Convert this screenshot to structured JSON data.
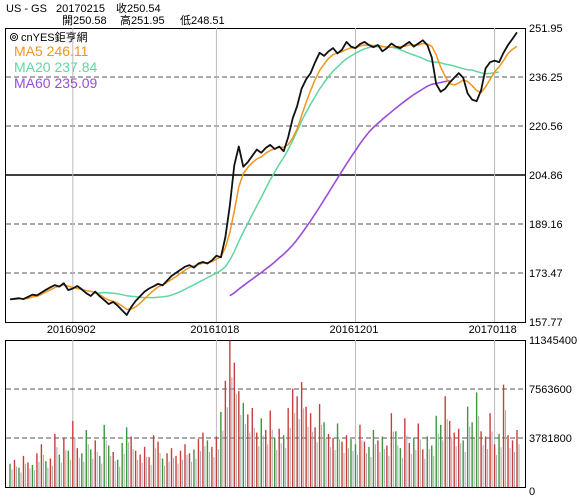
{
  "header": {
    "symbol": "US - GS",
    "date": "20170215",
    "close_label": "收250.54",
    "open_label": "開250.58",
    "high_label": "高251.95",
    "low_label": "低248.51"
  },
  "brand": {
    "icon": "copyright-icon",
    "text": "cnYES鉅亨網"
  },
  "colors": {
    "price": "#111111",
    "ma5": "#f0961e",
    "ma20": "#5fd7a0",
    "ma60": "#9b4bdc",
    "vol_red": "#c83c3c",
    "vol_green": "#3c963c",
    "vol_gray": "#999999"
  },
  "chart_data": [
    {
      "type": "line",
      "title": "US - GS",
      "xlabel": "",
      "ylabel": "",
      "ylim": [
        157.77,
        251.95
      ],
      "yticks": [
        "251.95",
        "236.25",
        "220.56",
        "204.86",
        "189.16",
        "173.47",
        "157.77"
      ],
      "xticks": [
        {
          "label": "20160902",
          "index": 14
        },
        {
          "label": "20161018",
          "index": 46
        },
        {
          "label": "20161201",
          "index": 77
        },
        {
          "label": "20170118",
          "index": 108
        }
      ],
      "legend": [
        {
          "key": "ma5",
          "text": "MA5 246.11"
        },
        {
          "key": "ma20",
          "text": "MA20 237.84"
        },
        {
          "key": "ma60",
          "text": "MA60 235.09"
        }
      ],
      "series": [
        {
          "name": "Close",
          "values": [
            165.0,
            165.2,
            165.4,
            165.1,
            165.8,
            166.5,
            166.3,
            167.2,
            168.1,
            168.9,
            169.6,
            169.1,
            170.2,
            168.0,
            168.5,
            169.3,
            168.2,
            167.0,
            166.1,
            167.5,
            166.0,
            164.8,
            163.5,
            164.2,
            163.0,
            161.5,
            160.0,
            162.5,
            164.5,
            166.0,
            167.5,
            168.5,
            169.2,
            170.0,
            169.5,
            171.0,
            172.5,
            173.5,
            174.5,
            175.5,
            176.0,
            175.2,
            176.5,
            177.0,
            176.5,
            177.5,
            179.0,
            178.5,
            185.0,
            195.0,
            208.0,
            214.0,
            207.5,
            209.0,
            211.0,
            213.0,
            212.0,
            213.5,
            214.5,
            213.2,
            214.0,
            212.5,
            217.0,
            223.0,
            227.0,
            232.5,
            235.5,
            237.5,
            241.0,
            244.0,
            243.0,
            244.5,
            245.5,
            243.8,
            245.0,
            247.5,
            246.0,
            245.5,
            246.8,
            247.5,
            246.5,
            245.8,
            246.5,
            244.5,
            245.5,
            247.0,
            246.0,
            245.5,
            246.5,
            247.5,
            246.0,
            247.0,
            248.0,
            246.5,
            242.5,
            234.0,
            231.5,
            232.5,
            234.5,
            236.0,
            237.5,
            236.0,
            231.0,
            229.0,
            228.5,
            232.0,
            239.0,
            241.0,
            241.5,
            241.0,
            244.0,
            246.5,
            248.5,
            250.54
          ]
        },
        {
          "name": "MA5",
          "values": [
            165.0,
            165.1,
            165.2,
            165.2,
            165.3,
            165.8,
            166.0,
            166.6,
            167.4,
            168.1,
            168.8,
            169.3,
            169.7,
            169.2,
            168.9,
            168.5,
            168.2,
            167.8,
            167.6,
            167.2,
            166.5,
            165.6,
            164.8,
            164.4,
            163.8,
            162.9,
            161.8,
            161.9,
            162.6,
            163.8,
            165.2,
            166.6,
            167.9,
            169.0,
            169.7,
            170.5,
            171.4,
            172.3,
            173.4,
            174.4,
            175.2,
            175.7,
            176.2,
            176.6,
            176.8,
            177.1,
            177.9,
            178.6,
            181.6,
            186.4,
            193.3,
            201.1,
            205.3,
            207.3,
            208.8,
            210.0,
            210.7,
            211.8,
            212.7,
            213.3,
            213.7,
            213.8,
            214.6,
            216.7,
            219.6,
            223.9,
            228.1,
            231.9,
            235.4,
            238.3,
            240.4,
            242.2,
            243.4,
            244.0,
            244.4,
            245.1,
            245.6,
            245.5,
            246.2,
            246.5,
            246.4,
            246.3,
            246.5,
            246.0,
            245.8,
            245.8,
            246.0,
            246.0,
            246.1,
            246.5,
            246.5,
            246.5,
            247.0,
            246.8,
            246.1,
            243.4,
            239.4,
            236.4,
            234.1,
            233.7,
            234.3,
            235.3,
            234.8,
            233.5,
            231.9,
            231.3,
            233.1,
            235.5,
            237.9,
            239.5,
            241.5,
            243.8,
            245.1,
            246.11
          ]
        },
        {
          "name": "MA20",
          "values": [
            null,
            null,
            null,
            null,
            null,
            null,
            null,
            null,
            null,
            null,
            null,
            null,
            null,
            null,
            null,
            null,
            null,
            null,
            null,
            167.0,
            167.1,
            167.2,
            167.1,
            167.0,
            166.8,
            166.5,
            166.2,
            166.0,
            165.9,
            165.7,
            165.6,
            165.6,
            165.6,
            165.7,
            165.8,
            166.0,
            166.4,
            166.9,
            167.5,
            168.2,
            169.0,
            169.7,
            170.5,
            171.2,
            172.0,
            172.7,
            173.4,
            174.3,
            175.5,
            177.6,
            180.3,
            183.6,
            186.6,
            189.4,
            192.2,
            195.0,
            197.7,
            200.5,
            203.3,
            205.8,
            208.3,
            210.5,
            213.0,
            215.9,
            219.0,
            222.2,
            224.9,
            227.5,
            230.0,
            232.4,
            234.5,
            236.4,
            238.1,
            239.5,
            240.9,
            242.1,
            243.0,
            243.8,
            244.6,
            245.3,
            245.7,
            245.9,
            246.0,
            246.0,
            245.9,
            245.8,
            245.5,
            245.0,
            244.4,
            243.8,
            243.3,
            242.8,
            242.2,
            241.5,
            241.1,
            241.0,
            240.8,
            240.4,
            240.1,
            239.8,
            239.3,
            238.9,
            238.6,
            238.5,
            238.0,
            237.6,
            237.3,
            237.4,
            237.6,
            237.84
          ]
        },
        {
          "name": "MA60",
          "values": [
            null,
            null,
            null,
            null,
            null,
            null,
            null,
            null,
            null,
            null,
            null,
            null,
            null,
            null,
            null,
            null,
            null,
            null,
            null,
            null,
            null,
            null,
            null,
            null,
            null,
            null,
            null,
            null,
            null,
            null,
            null,
            null,
            null,
            null,
            null,
            null,
            null,
            null,
            null,
            null,
            null,
            null,
            null,
            null,
            null,
            null,
            null,
            null,
            null,
            166.2,
            167.1,
            168.3,
            169.4,
            170.5,
            171.5,
            172.6,
            173.6,
            174.7,
            175.8,
            177.0,
            178.3,
            179.5,
            180.9,
            182.4,
            184.2,
            186.1,
            188.1,
            190.2,
            192.4,
            194.6,
            196.9,
            199.2,
            201.5,
            203.8,
            206.1,
            208.4,
            210.6,
            212.7,
            214.9,
            216.8,
            218.6,
            220.1,
            221.4,
            222.7,
            223.9,
            225.1,
            226.3,
            227.4,
            228.5,
            229.6,
            230.6,
            231.5,
            232.4,
            233.3,
            233.9,
            234.2,
            234.5,
            234.8,
            235.09
          ]
        }
      ]
    },
    {
      "type": "bar",
      "title": "",
      "xlabel": "",
      "ylabel": "",
      "ylim": [
        0,
        11345400
      ],
      "yticks": [
        "11345400",
        "7563600",
        "3781800",
        "0"
      ],
      "series": [
        {
          "name": "",
          "values": [
            1.8,
            2.1,
            1.5,
            2.4,
            1.9,
            1.7,
            2.6,
            3.3,
            2.0,
            2.2,
            4.1,
            2.5,
            3.8,
            2.8,
            5.1,
            3.0,
            2.6,
            4.4,
            2.9,
            3.6,
            2.4,
            4.8,
            3.2,
            2.7,
            2.1,
            3.4,
            4.6,
            3.9,
            2.8,
            2.5,
            3.1,
            2.3,
            4.0,
            3.5,
            2.2,
            2.6,
            3.0,
            2.4,
            2.8,
            3.3,
            2.6,
            2.9,
            3.7,
            4.2,
            3.6,
            3.1,
            3.9,
            5.8,
            8.2,
            11.3,
            9.6,
            7.4,
            6.5,
            5.6,
            6.1,
            4.2,
            5.3,
            4.4,
            5.9,
            3.8,
            4.5,
            4.0,
            6.1,
            7.6,
            7.0,
            8.1,
            6.2,
            5.7,
            4.6,
            6.4,
            5.0,
            4.1,
            3.8,
            4.9,
            3.5,
            4.0,
            3.7,
            3.3,
            4.8,
            3.5,
            3.1,
            4.4,
            3.6,
            3.9,
            3.2,
            5.7,
            4.3,
            3.0,
            5.3,
            3.4,
            3.8,
            4.9,
            2.9,
            3.9,
            3.2,
            5.5,
            4.8,
            7.0,
            5.1,
            4.2,
            4.5,
            3.6,
            6.2,
            5.0,
            7.3,
            4.3,
            3.9,
            5.7,
            3.3,
            4.1,
            7.9,
            4.0,
            3.6,
            4.4
          ],
          "colors": [
            "g",
            "r",
            "g",
            "r",
            "r",
            "g",
            "r",
            "r",
            "g",
            "r",
            "r",
            "g",
            "r",
            "g",
            "r",
            "r",
            "g",
            "g",
            "g",
            "r",
            "g",
            "g",
            "g",
            "r",
            "g",
            "g",
            "g",
            "r",
            "r",
            "r",
            "r",
            "r",
            "r",
            "r",
            "g",
            "r",
            "r",
            "r",
            "r",
            "r",
            "r",
            "g",
            "r",
            "r",
            "g",
            "r",
            "r",
            "g",
            "r",
            "r",
            "r",
            "r",
            "g",
            "r",
            "r",
            "r",
            "g",
            "r",
            "r",
            "g",
            "r",
            "g",
            "r",
            "r",
            "r",
            "r",
            "r",
            "r",
            "r",
            "r",
            "g",
            "r",
            "r",
            "g",
            "r",
            "r",
            "g",
            "g",
            "r",
            "r",
            "g",
            "g",
            "r",
            "g",
            "r",
            "r",
            "g",
            "g",
            "r",
            "r",
            "g",
            "r",
            "r",
            "g",
            "g",
            "g",
            "g",
            "r",
            "r",
            "r",
            "r",
            "g",
            "g",
            "g",
            "g",
            "r",
            "r",
            "r",
            "r",
            "g",
            "r",
            "r",
            "r",
            "r"
          ]
        }
      ]
    }
  ]
}
